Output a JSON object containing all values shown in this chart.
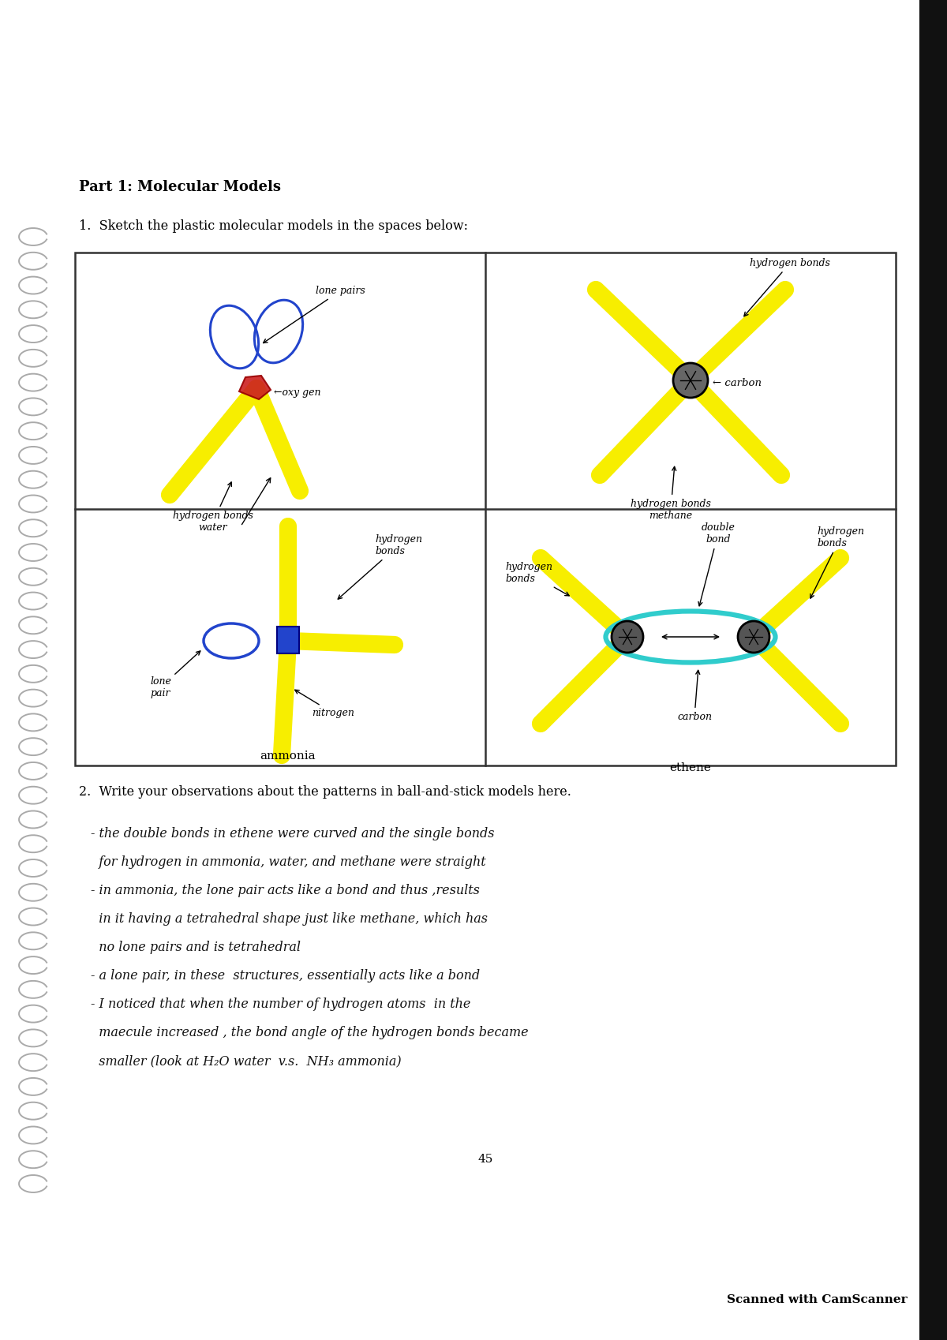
{
  "page_title": "Part 1: Molecular Models",
  "question1": "1.  Sketch the plastic molecular models in the spaces below:",
  "question2": "2.  Write your observations about the patterns in ball-and-stick models here.",
  "obs_lines": [
    "- the double bonds in ethene were curved and the single bonds",
    "  for hydrogen in ammonia, water, and methane were straight",
    "- in ammonia, the lone pair acts like a bond and thus ,results",
    "  in it having a tetrahedral shape just like methane, which has",
    "  no lone pairs and is tetrahedral",
    "- a lone pair, in these  structures, essentially acts like a bond",
    "- I noticed that when the number of hydrogen atoms  in the",
    "  maecule increased , the bond angle of the hydrogen bonds became",
    "  smaller (look at H₂O water  v.s.  NH₃ ammonia)"
  ],
  "page_number": "45",
  "footer": "Scanned with CamScanner",
  "bg_color": "#ffffff",
  "box_color": "#333333",
  "yellow_color": "#f7ee00",
  "blue_color": "#2244cc",
  "red_color": "#cc2020",
  "teal_color": "#30cccc",
  "spiral_color": "#aaaaaa",
  "text_color": "#222222",
  "handwriting_color": "#111111",
  "right_bar_color": "#111111"
}
